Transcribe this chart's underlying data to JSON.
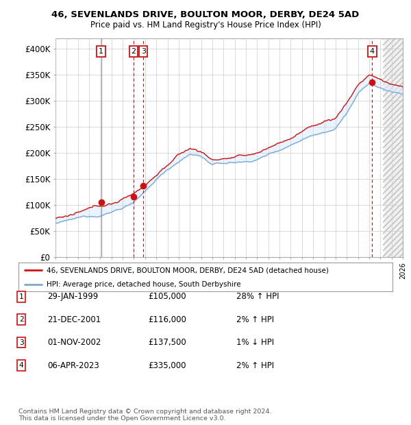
{
  "title1": "46, SEVENLANDS DRIVE, BOULTON MOOR, DERBY, DE24 5AD",
  "title2": "Price paid vs. HM Land Registry's House Price Index (HPI)",
  "ylim": [
    0,
    420000
  ],
  "yticks": [
    0,
    50000,
    100000,
    150000,
    200000,
    250000,
    300000,
    350000,
    400000
  ],
  "ytick_labels": [
    "£0",
    "£50K",
    "£100K",
    "£150K",
    "£200K",
    "£250K",
    "£300K",
    "£350K",
    "£400K"
  ],
  "sale_dates": [
    1999.08,
    2001.97,
    2002.84,
    2023.27
  ],
  "sale_prices": [
    105000,
    116000,
    137500,
    335000
  ],
  "sale_labels": [
    "1",
    "2",
    "3",
    "4"
  ],
  "sale_line_styles": [
    "solid_gray",
    "dashed_red",
    "dashed_red",
    "dashed_red"
  ],
  "hpi_color": "#7aaad4",
  "price_color": "#cc1111",
  "fill_color": "#ddeeff",
  "legend_price_label": "46, SEVENLANDS DRIVE, BOULTON MOOR, DERBY, DE24 5AD (detached house)",
  "legend_hpi_label": "HPI: Average price, detached house, South Derbyshire",
  "table_rows": [
    [
      "1",
      "29-JAN-1999",
      "£105,000",
      "28% ↑ HPI"
    ],
    [
      "2",
      "21-DEC-2001",
      "£116,000",
      "2% ↑ HPI"
    ],
    [
      "3",
      "01-NOV-2002",
      "£137,500",
      "1% ↓ HPI"
    ],
    [
      "4",
      "06-APR-2023",
      "£335,000",
      "2% ↑ HPI"
    ]
  ],
  "footnote": "Contains HM Land Registry data © Crown copyright and database right 2024.\nThis data is licensed under the Open Government Licence v3.0.",
  "background_color": "#ffffff",
  "grid_color": "#cccccc",
  "xlim": [
    1995,
    2026
  ],
  "x_start": 1995,
  "x_end": 2026,
  "future_start": 2024.25
}
